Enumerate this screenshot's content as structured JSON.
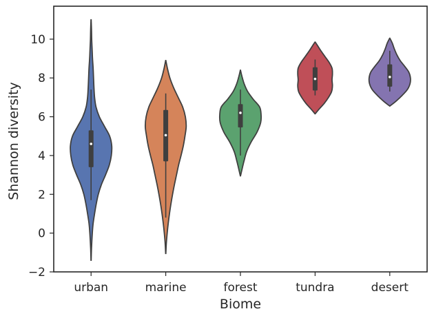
{
  "chart_data": {
    "type": "violin",
    "title": "",
    "xlabel": "Biome",
    "ylabel": "Shannon diversity",
    "ylim": [
      -2,
      11.7
    ],
    "yticks": [
      -2,
      0,
      2,
      4,
      6,
      8,
      10
    ],
    "grid": false,
    "categories": [
      "urban",
      "marine",
      "forest",
      "tundra",
      "desert"
    ],
    "colors": [
      "#5875b0",
      "#d5845a",
      "#5ba26f",
      "#bf4f58",
      "#8474b0"
    ],
    "series": [
      {
        "category": "urban",
        "min": 1.7,
        "q1": 3.4,
        "median": 4.6,
        "q3": 5.3,
        "max": 7.4,
        "profile": [
          [
            -1.4,
            0.004
          ],
          [
            -0.8,
            0.02
          ],
          [
            0.0,
            0.06
          ],
          [
            0.5,
            0.1
          ],
          [
            1.0,
            0.17
          ],
          [
            1.5,
            0.25
          ],
          [
            2.0,
            0.35
          ],
          [
            2.5,
            0.5
          ],
          [
            3.0,
            0.7
          ],
          [
            3.5,
            0.88
          ],
          [
            4.0,
            0.98
          ],
          [
            4.5,
            1.0
          ],
          [
            5.0,
            0.9
          ],
          [
            5.5,
            0.65
          ],
          [
            6.0,
            0.4
          ],
          [
            6.5,
            0.24
          ],
          [
            7.0,
            0.17
          ],
          [
            7.5,
            0.14
          ],
          [
            8.0,
            0.12
          ],
          [
            8.5,
            0.1
          ],
          [
            9.0,
            0.07
          ],
          [
            9.5,
            0.05
          ],
          [
            10.0,
            0.03
          ],
          [
            10.5,
            0.02
          ],
          [
            11.0,
            0.004
          ]
        ]
      },
      {
        "category": "marine",
        "min": 0.8,
        "q1": 3.7,
        "median": 5.05,
        "q3": 6.35,
        "max": 7.2,
        "profile": [
          [
            -1.05,
            0.004
          ],
          [
            -0.5,
            0.03
          ],
          [
            0.0,
            0.07
          ],
          [
            0.5,
            0.12
          ],
          [
            1.0,
            0.18
          ],
          [
            1.5,
            0.25
          ],
          [
            2.0,
            0.33
          ],
          [
            2.5,
            0.42
          ],
          [
            3.0,
            0.52
          ],
          [
            3.5,
            0.62
          ],
          [
            4.0,
            0.74
          ],
          [
            4.5,
            0.85
          ],
          [
            5.0,
            0.93
          ],
          [
            5.5,
            0.99
          ],
          [
            6.0,
            0.95
          ],
          [
            6.5,
            0.82
          ],
          [
            7.0,
            0.6
          ],
          [
            7.5,
            0.38
          ],
          [
            8.0,
            0.2
          ],
          [
            8.5,
            0.08
          ],
          [
            8.9,
            0.004
          ]
        ]
      },
      {
        "category": "forest",
        "min": 4.0,
        "q1": 5.45,
        "median": 6.2,
        "q3": 6.65,
        "max": 7.4,
        "profile": [
          [
            2.95,
            0.004
          ],
          [
            3.3,
            0.08
          ],
          [
            3.7,
            0.17
          ],
          [
            4.2,
            0.3
          ],
          [
            4.7,
            0.52
          ],
          [
            5.2,
            0.8
          ],
          [
            5.7,
            0.98
          ],
          [
            6.1,
            1.0
          ],
          [
            6.5,
            0.93
          ],
          [
            6.9,
            0.62
          ],
          [
            7.3,
            0.35
          ],
          [
            7.7,
            0.18
          ],
          [
            8.1,
            0.07
          ],
          [
            8.4,
            0.004
          ]
        ]
      },
      {
        "category": "tundra",
        "min": 7.1,
        "q1": 7.35,
        "median": 7.95,
        "q3": 8.55,
        "max": 8.95,
        "profile": [
          [
            6.15,
            0.004
          ],
          [
            6.4,
            0.2
          ],
          [
            6.7,
            0.45
          ],
          [
            7.0,
            0.65
          ],
          [
            7.3,
            0.8
          ],
          [
            7.6,
            0.84
          ],
          [
            7.9,
            0.82
          ],
          [
            8.2,
            0.84
          ],
          [
            8.5,
            0.82
          ],
          [
            8.8,
            0.68
          ],
          [
            9.1,
            0.48
          ],
          [
            9.4,
            0.28
          ],
          [
            9.7,
            0.1
          ],
          [
            9.85,
            0.004
          ]
        ]
      },
      {
        "category": "desert",
        "min": 7.3,
        "q1": 7.55,
        "median": 8.05,
        "q3": 8.7,
        "max": 9.4,
        "profile": [
          [
            6.55,
            0.004
          ],
          [
            6.8,
            0.3
          ],
          [
            7.1,
            0.6
          ],
          [
            7.4,
            0.85
          ],
          [
            7.7,
            0.98
          ],
          [
            8.0,
            1.0
          ],
          [
            8.3,
            0.92
          ],
          [
            8.6,
            0.72
          ],
          [
            8.9,
            0.5
          ],
          [
            9.2,
            0.34
          ],
          [
            9.5,
            0.22
          ],
          [
            9.8,
            0.12
          ],
          [
            10.05,
            0.004
          ]
        ]
      }
    ]
  }
}
